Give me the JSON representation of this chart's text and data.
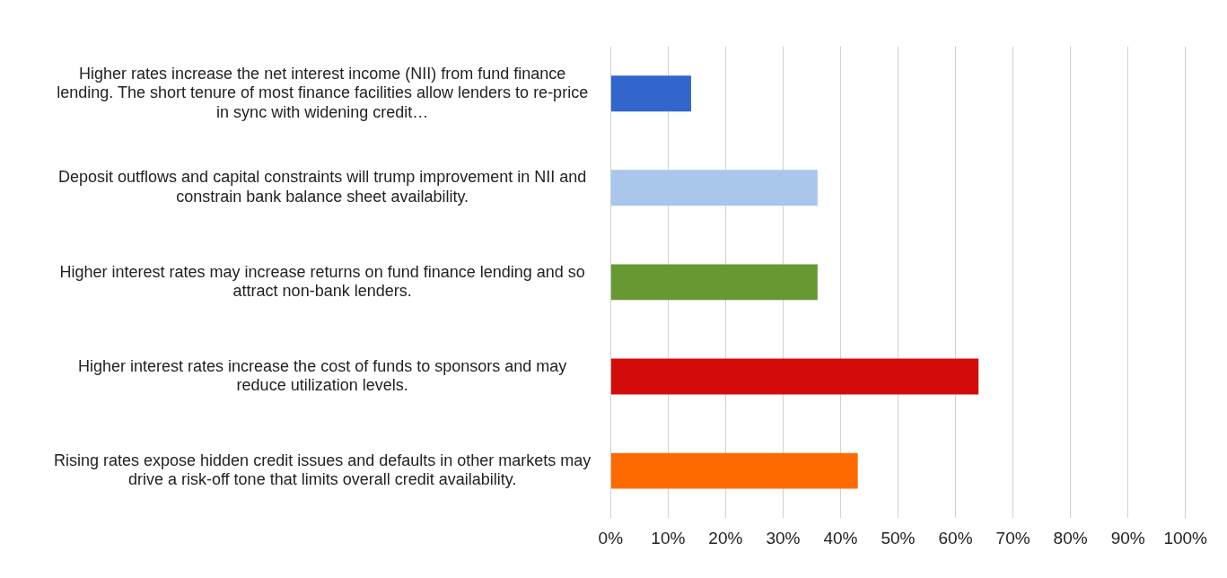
{
  "chart_data": {
    "type": "bar",
    "orientation": "horizontal",
    "categories": [
      "Higher rates increase the net interest income (NII) from fund finance lending. The short tenure of most finance facilities allow lenders to re-price in sync with widening credit…",
      "Deposit outflows and capital constraints will trump improvement in NII and constrain bank balance sheet availability.",
      "Higher interest rates may increase returns on fund finance lending and so attract non-bank lenders.",
      "Higher interest rates increase the cost of funds to sponsors and may reduce utilization levels.",
      "Rising rates expose hidden credit issues and defaults in other markets may drive a risk-off tone that limits overall credit availability."
    ],
    "values": [
      14,
      36,
      36,
      64,
      43
    ],
    "colors": [
      "#3366cc",
      "#a9c6ec",
      "#669933",
      "#d40b0b",
      "#ff6a00"
    ],
    "xlim": [
      0,
      100
    ],
    "xticks": [
      {
        "value": 0,
        "label": "0%"
      },
      {
        "value": 10,
        "label": "10%"
      },
      {
        "value": 20,
        "label": "20%"
      },
      {
        "value": 30,
        "label": "30%"
      },
      {
        "value": 40,
        "label": "40%"
      },
      {
        "value": 50,
        "label": "50%"
      },
      {
        "value": 60,
        "label": "60%"
      },
      {
        "value": 70,
        "label": "70%"
      },
      {
        "value": 80,
        "label": "80%"
      },
      {
        "value": 90,
        "label": "90%"
      },
      {
        "value": 100,
        "label": "100%"
      }
    ],
    "grid": "x",
    "legend": false
  }
}
